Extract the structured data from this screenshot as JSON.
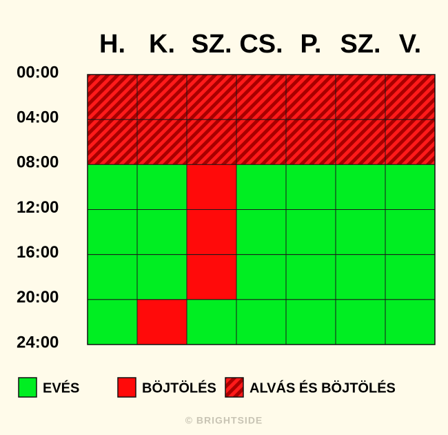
{
  "days": [
    "H.",
    "K.",
    "SZ.",
    "CS.",
    "P.",
    "SZ.",
    "V."
  ],
  "times": [
    "00:00",
    "04:00",
    "08:00",
    "12:00",
    "16:00",
    "20:00",
    "24:00"
  ],
  "legend": [
    {
      "label": "EVÉS",
      "color": "#00ee22"
    },
    {
      "label": "BÖJTÖLÉS",
      "color": "#ff0a0a"
    },
    {
      "label": "ALVÁS ÉS BÖJTÖLÉS",
      "color": "#a80000"
    }
  ],
  "grid": [
    [
      2,
      2,
      2,
      2,
      2,
      2,
      2
    ],
    [
      2,
      2,
      2,
      2,
      2,
      2,
      2
    ],
    [
      0,
      0,
      1,
      0,
      0,
      0,
      0
    ],
    [
      0,
      0,
      1,
      0,
      0,
      0,
      0
    ],
    [
      0,
      0,
      1,
      0,
      0,
      0,
      0
    ],
    [
      0,
      1,
      0,
      0,
      0,
      0,
      0
    ]
  ],
  "footer": "© BRIGHTSIDE"
}
